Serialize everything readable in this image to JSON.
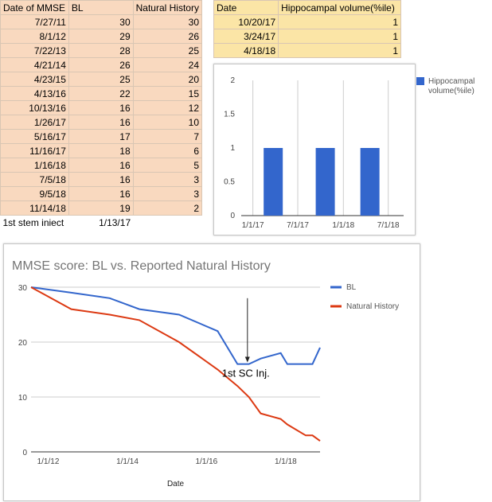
{
  "mmse_table": {
    "headers": [
      "Date of MMSE",
      "BL",
      "Natural History"
    ],
    "rows": [
      [
        "7/27/11",
        "30",
        "30"
      ],
      [
        "8/1/12",
        "29",
        "26"
      ],
      [
        "7/22/13",
        "28",
        "25"
      ],
      [
        "4/21/14",
        "26",
        "24"
      ],
      [
        "4/23/15",
        "25",
        "20"
      ],
      [
        "4/13/16",
        "22",
        "15"
      ],
      [
        "10/13/16",
        "16",
        "12"
      ],
      [
        "1/26/17",
        "16",
        "10"
      ],
      [
        "5/16/17",
        "17",
        "7"
      ],
      [
        "11/16/17",
        "18",
        "6"
      ],
      [
        "1/16/18",
        "16",
        "5"
      ],
      [
        "7/5/18",
        "16",
        "3"
      ],
      [
        "9/5/18",
        "16",
        "3"
      ],
      [
        "11/14/18",
        "19",
        "2"
      ]
    ],
    "footer_label": "1st stem iniect",
    "footer_value": "1/13/17"
  },
  "hippo_table": {
    "headers": [
      "Date",
      "Hippocampal volume(%ile)"
    ],
    "rows": [
      [
        "10/20/17",
        "1"
      ],
      [
        "3/24/17",
        "1"
      ],
      [
        "4/18/18",
        "1"
      ]
    ]
  },
  "chart_data": [
    {
      "type": "bar",
      "title": "",
      "legend": [
        "Hippocampal",
        "volume(%ile)"
      ],
      "legend_position": "right",
      "series_color": "#3366cc",
      "y_ticks": [
        "0",
        "0.5",
        "1",
        "1.5",
        "2"
      ],
      "ylim": [
        0,
        2
      ],
      "x_tick_labels": [
        "1/1/17",
        "7/1/17",
        "1/1/18",
        "7/1/18"
      ],
      "x_ticks_date": [
        "2017-01-01",
        "2017-07-01",
        "2018-01-01",
        "2018-07-01"
      ],
      "xlim": [
        "2016-11-15",
        "2018-09-01"
      ],
      "x": [
        "2017-03-24",
        "2017-10-20",
        "2018-04-18"
      ],
      "values": [
        1,
        1,
        1
      ],
      "grid": "vertical"
    },
    {
      "type": "line",
      "title": "MMSE score: BL vs. Reported Natural History",
      "xlabel": "Date",
      "ylabel": "",
      "ylim": [
        0,
        30
      ],
      "y_ticks": [
        "0",
        "10",
        "20",
        "30"
      ],
      "x_tick_labels": [
        "1/1/12",
        "1/1/14",
        "1/1/16",
        "1/1/18"
      ],
      "x_ticks_date": [
        "2012-01-01",
        "2014-01-01",
        "2016-01-01",
        "2018-01-01"
      ],
      "xlim": [
        "2011-07-27",
        "2018-11-14"
      ],
      "legend_position": "right",
      "grid": "horizontal",
      "x": [
        "2011-07-27",
        "2012-08-01",
        "2013-07-22",
        "2014-04-21",
        "2015-04-23",
        "2016-04-13",
        "2016-10-13",
        "2017-01-26",
        "2017-05-16",
        "2017-11-16",
        "2018-01-16",
        "2018-07-05",
        "2018-09-05",
        "2018-11-14"
      ],
      "series": [
        {
          "name": "BL",
          "color": "#3366cc",
          "values": [
            30,
            29,
            28,
            26,
            25,
            22,
            16,
            16,
            17,
            18,
            16,
            16,
            16,
            19
          ]
        },
        {
          "name": "Natural History",
          "color": "#dc3912",
          "values": [
            30,
            26,
            25,
            24,
            20,
            15,
            12,
            10,
            7,
            6,
            5,
            3,
            3,
            2
          ]
        }
      ],
      "annotation": {
        "text": "1st SC Inj.",
        "date": "2017-01-13",
        "arrow_top_value": 28,
        "arrow_tip_value": 16.3
      }
    }
  ]
}
